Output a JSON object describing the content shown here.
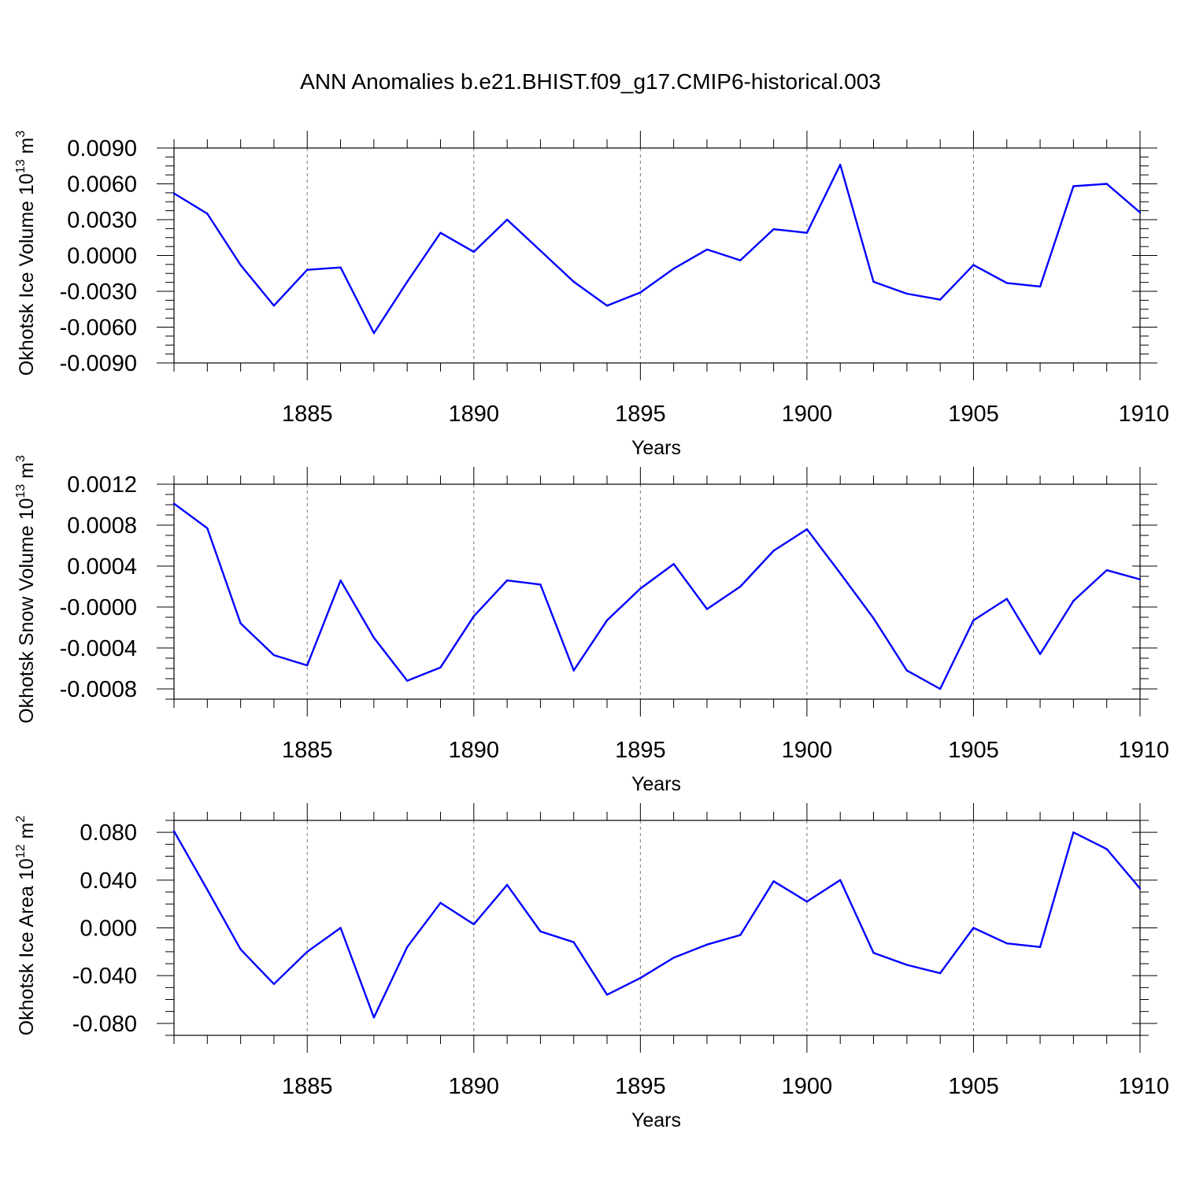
{
  "figure_title": "ANN Anomalies b.e21.BHIST.f09_g17.CMIP6-historical.003",
  "chart_data": [
    {
      "type": "line",
      "title": "ANN Anomalies b.e21.BHIST.f09_g17.CMIP6-historical.003",
      "xlabel": "Years",
      "ylabel": "Okhotsk Ice Volume 10",
      "ylabel_exp": "13",
      "ylabel_unit": " m",
      "ylabel_unit_exp": "3",
      "xlim": [
        1881,
        1910
      ],
      "ylim": [
        -0.009,
        0.009
      ],
      "xticks": [
        1885,
        1890,
        1895,
        1900,
        1905,
        1910
      ],
      "xtick_labels": [
        "1885",
        "1890",
        "1895",
        "1900",
        "1905",
        "1910"
      ],
      "yticks": [
        0.009,
        0.006,
        0.003,
        0.0,
        -0.003,
        -0.006,
        -0.009
      ],
      "ytick_labels": [
        "0.0090",
        "0.0060",
        "0.0030",
        "0.0000",
        "-0.0030",
        "-0.0060",
        "-0.0090"
      ],
      "grid": "vertical dashed at major x ticks",
      "color": "#0000ff",
      "x": [
        1881,
        1882,
        1883,
        1884,
        1885,
        1886,
        1887,
        1888,
        1889,
        1890,
        1891,
        1892,
        1893,
        1894,
        1895,
        1896,
        1897,
        1898,
        1899,
        1900,
        1901,
        1902,
        1903,
        1904,
        1905,
        1906,
        1907,
        1908,
        1909,
        1910
      ],
      "values": [
        0.0052,
        0.0035,
        -0.0008,
        -0.0042,
        -0.0012,
        -0.001,
        -0.0065,
        -0.0022,
        0.0019,
        0.0003,
        0.003,
        0.0004,
        -0.0022,
        -0.0042,
        -0.0031,
        -0.0011,
        0.0005,
        -0.0004,
        0.0022,
        0.0019,
        0.0076,
        -0.0022,
        -0.0032,
        -0.0037,
        -0.0008,
        -0.0023,
        -0.0026,
        0.0058,
        0.006,
        0.0036
      ]
    },
    {
      "type": "line",
      "xlabel": "Years",
      "ylabel": "Okhotsk Snow Volume 10",
      "ylabel_exp": "13",
      "ylabel_unit": " m",
      "ylabel_unit_exp": "3",
      "xlim": [
        1881,
        1910
      ],
      "ylim": [
        -0.0009,
        0.0012
      ],
      "xticks": [
        1885,
        1890,
        1895,
        1900,
        1905,
        1910
      ],
      "xtick_labels": [
        "1885",
        "1890",
        "1895",
        "1900",
        "1905",
        "1910"
      ],
      "yticks": [
        0.0012,
        0.0008,
        0.0004,
        0.0,
        -0.0004,
        -0.0008
      ],
      "ytick_labels": [
        "0.0012",
        "0.0008",
        "0.0004",
        "-0.0000",
        "-0.0004",
        "-0.0008"
      ],
      "grid": "vertical dashed at major x ticks",
      "color": "#0000ff",
      "x": [
        1881,
        1882,
        1883,
        1884,
        1885,
        1886,
        1887,
        1888,
        1889,
        1890,
        1891,
        1892,
        1893,
        1894,
        1895,
        1896,
        1897,
        1898,
        1899,
        1900,
        1901,
        1902,
        1903,
        1904,
        1905,
        1906,
        1907,
        1908,
        1909,
        1910
      ],
      "values": [
        0.00101,
        0.00077,
        -0.00016,
        -0.00047,
        -0.00057,
        0.00026,
        -0.0003,
        -0.00072,
        -0.00059,
        -9e-05,
        0.00026,
        0.00022,
        -0.00062,
        -0.00013,
        0.00018,
        0.00042,
        -2e-05,
        0.0002,
        0.00055,
        0.00076,
        0.00033,
        -0.00011,
        -0.00062,
        -0.0008,
        -0.00013,
        8e-05,
        -0.00046,
        6e-05,
        0.00036,
        0.00027
      ]
    },
    {
      "type": "line",
      "xlabel": "Years",
      "ylabel": "Okhotsk Ice Area 10",
      "ylabel_exp": "12",
      "ylabel_unit": " m",
      "ylabel_unit_exp": "2",
      "xlim": [
        1881,
        1910
      ],
      "ylim": [
        -0.09,
        0.09
      ],
      "xticks": [
        1885,
        1890,
        1895,
        1900,
        1905,
        1910
      ],
      "xtick_labels": [
        "1885",
        "1890",
        "1895",
        "1900",
        "1905",
        "1910"
      ],
      "yticks": [
        0.08,
        0.04,
        0.0,
        -0.04,
        -0.08
      ],
      "ytick_labels": [
        "0.080",
        "0.040",
        "0.000",
        "-0.040",
        "-0.080"
      ],
      "grid": "vertical dashed at major x ticks",
      "color": "#0000ff",
      "x": [
        1881,
        1882,
        1883,
        1884,
        1885,
        1886,
        1887,
        1888,
        1889,
        1890,
        1891,
        1892,
        1893,
        1894,
        1895,
        1896,
        1897,
        1898,
        1899,
        1900,
        1901,
        1902,
        1903,
        1904,
        1905,
        1906,
        1907,
        1908,
        1909,
        1910
      ],
      "values": [
        0.081,
        0.032,
        -0.018,
        -0.047,
        -0.02,
        0.0,
        -0.075,
        -0.016,
        0.021,
        0.003,
        0.036,
        -0.003,
        -0.012,
        -0.056,
        -0.042,
        -0.025,
        -0.014,
        -0.006,
        0.039,
        0.022,
        0.04,
        -0.021,
        -0.031,
        -0.038,
        0.0,
        -0.013,
        -0.016,
        0.08,
        0.066,
        0.033
      ]
    }
  ]
}
